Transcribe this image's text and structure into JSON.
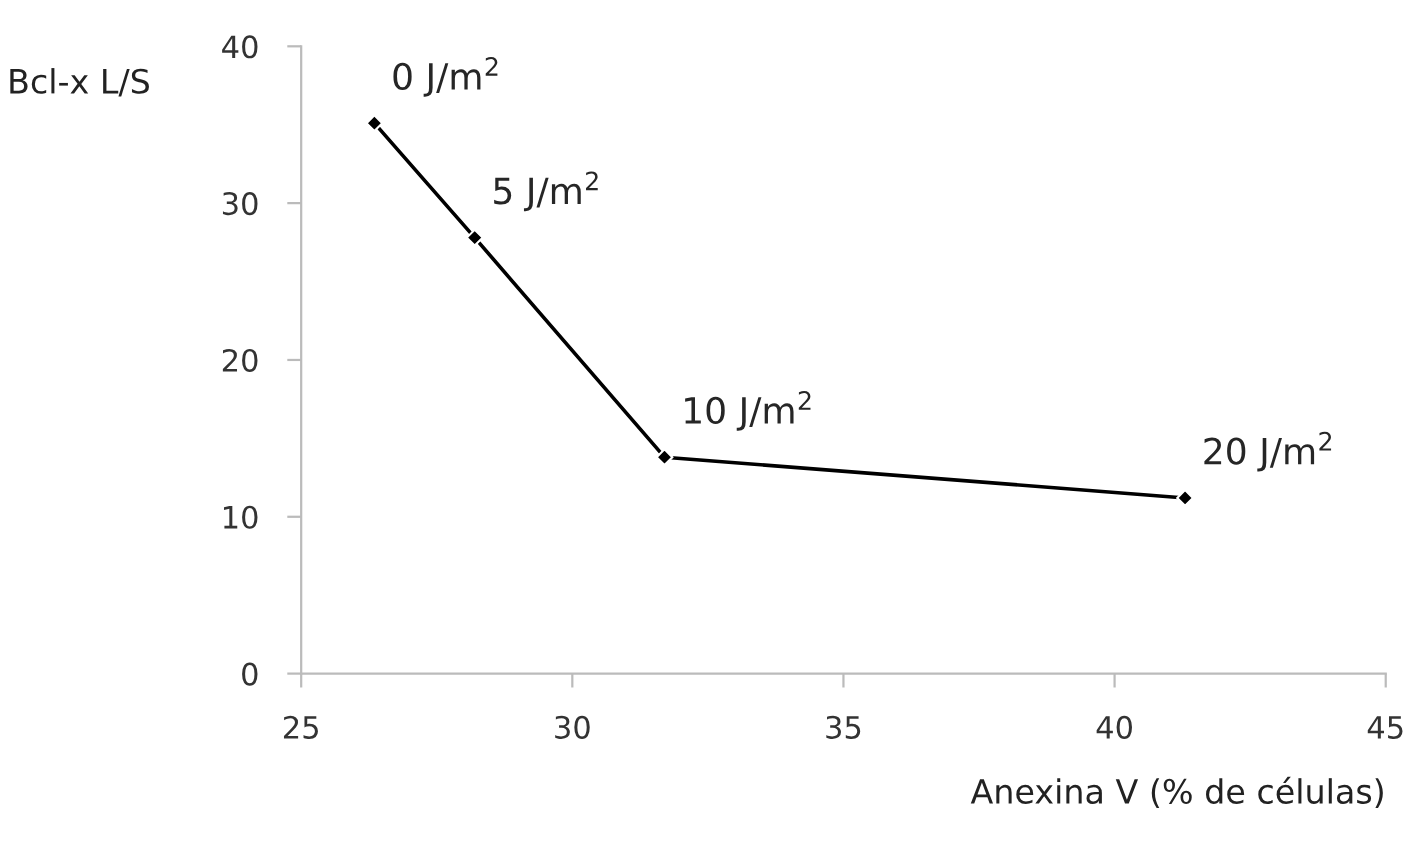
{
  "chart_data": {
    "type": "line",
    "xlabel": "Anexina V (% de células)",
    "ylabel": "Bcl-x L/S",
    "x": [
      26.35,
      28.2,
      31.7,
      41.3
    ],
    "series": [
      {
        "color": "#000000",
        "values": [
          35.1,
          27.8,
          13.8,
          11.2
        ]
      }
    ],
    "xlim": [
      25,
      45
    ],
    "xticks": [
      25,
      30,
      35,
      40,
      45
    ],
    "ylim": [
      0,
      40
    ],
    "yticks": [
      0,
      10,
      20,
      30,
      40
    ],
    "grid": false,
    "marker": "diamond",
    "line_style": "solid",
    "annotations": [
      {
        "text": "0 J/m$^{2}$",
        "x": 26.35,
        "y": 35.1
      },
      {
        "text": "5 J/m$^{2}$",
        "x": 28.2,
        "y": 27.8
      },
      {
        "text": "10 J/m$^{2}$",
        "x": 31.7,
        "y": 13.8
      },
      {
        "text": "20 J/m$^{2}$",
        "x": 41.3,
        "y": 11.2
      }
    ]
  }
}
